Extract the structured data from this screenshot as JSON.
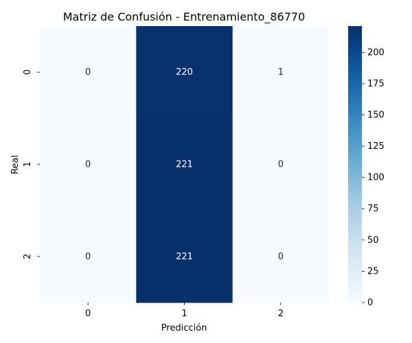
{
  "chart_data": {
    "type": "heatmap",
    "title": "Matriz de Confusión - Entrenamiento_86770",
    "xlabel": "Predicción",
    "ylabel": "Real",
    "x_categories": [
      "0",
      "1",
      "2"
    ],
    "y_categories": [
      "0",
      "1",
      "2"
    ],
    "values": [
      [
        0,
        220,
        1
      ],
      [
        0,
        221,
        0
      ],
      [
        0,
        221,
        0
      ]
    ],
    "colorscale": "Blues",
    "color_range": [
      0,
      221
    ],
    "colorbar_ticks": [
      "0",
      "25",
      "50",
      "75",
      "100",
      "125",
      "150",
      "175",
      "200"
    ],
    "colorbar_tick_values": [
      0,
      25,
      50,
      75,
      100,
      125,
      150,
      175,
      200
    ]
  }
}
